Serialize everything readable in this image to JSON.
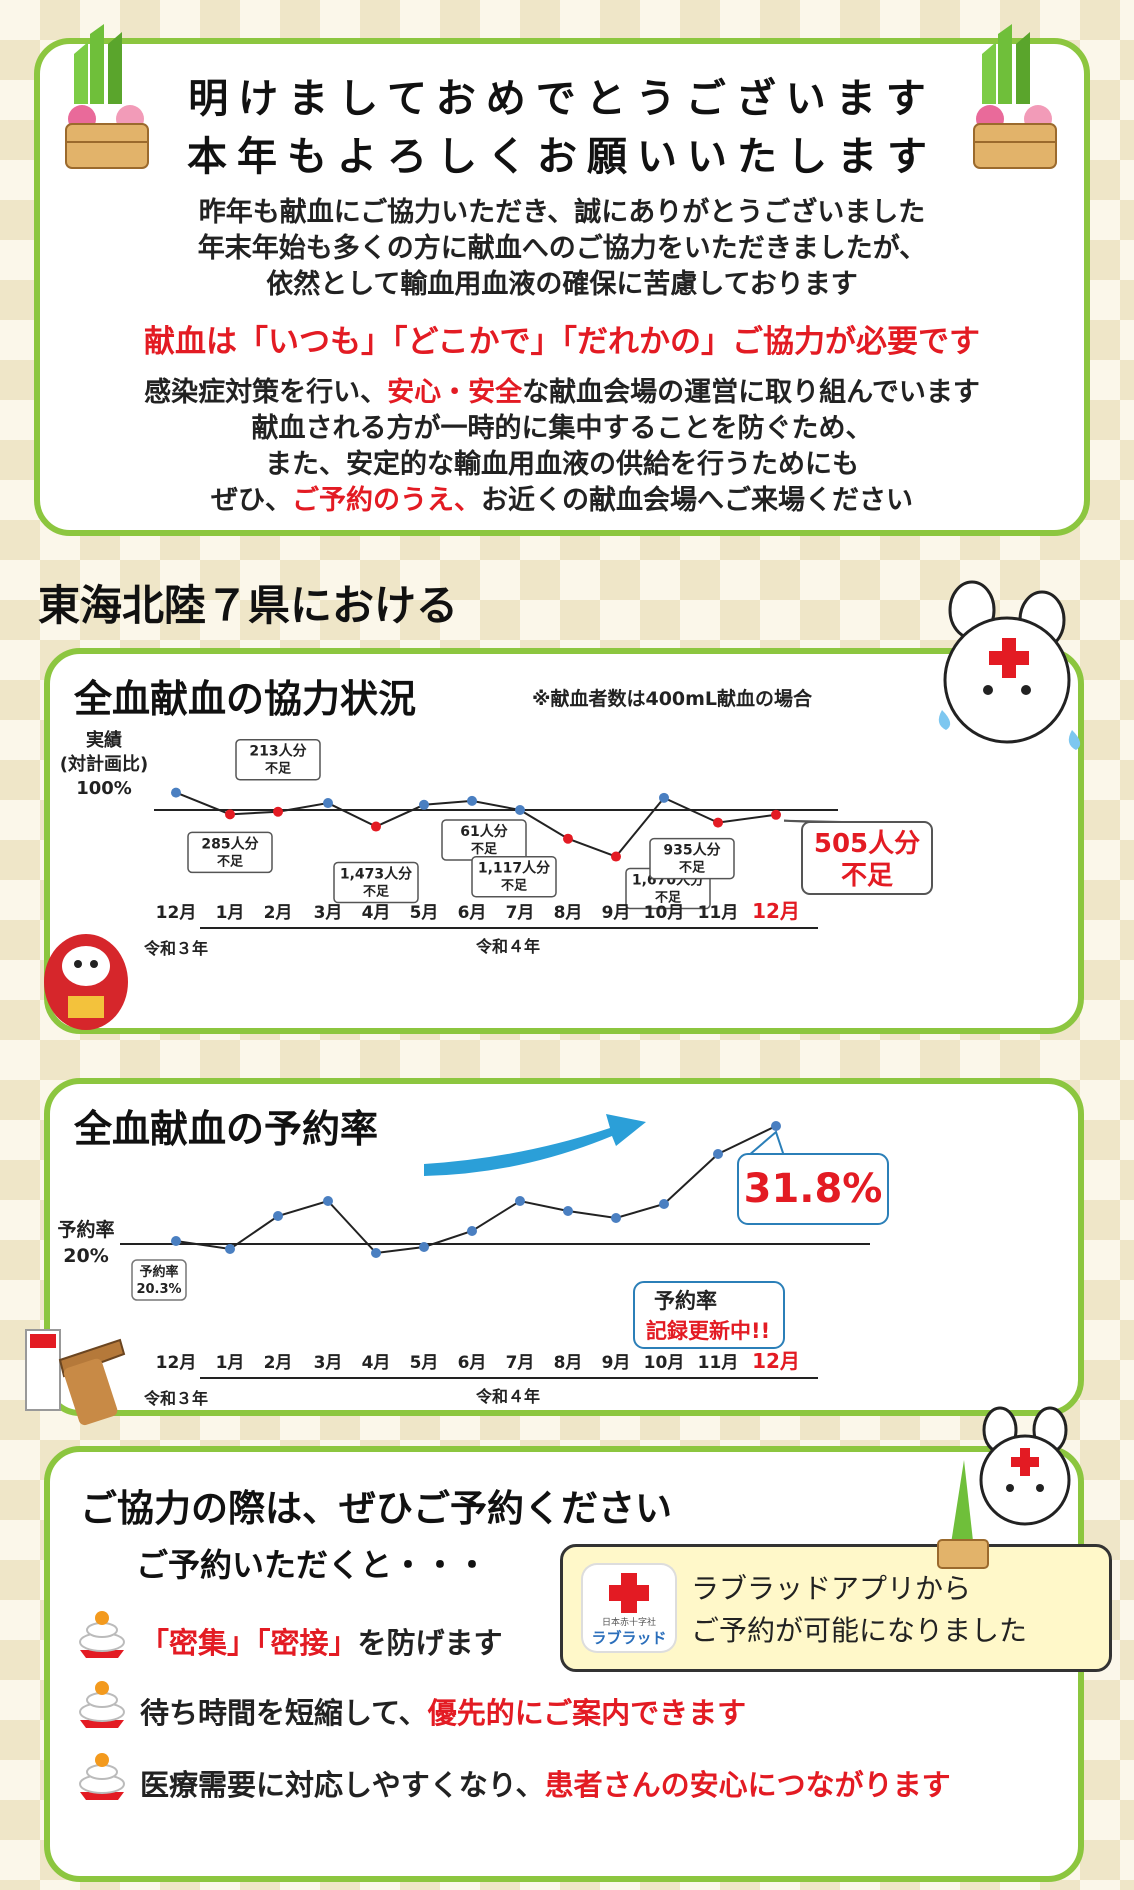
{
  "greeting": {
    "line1": "明けましておめでとうございます",
    "line2": "本年もよろしくお願いいたします",
    "body": [
      "昨年も献血にご協力いただき、誠にありがとうございました",
      "年末年始も多くの方に献血へのご協力をいただきましたが、",
      "依然として輸血用血液の確保に苦慮しております"
    ],
    "slogan": "献血は「いつも」「どこかで」「だれかの」ご協力が必要です",
    "measures_1a": "感染症対策を行い、",
    "measures_1b": "安心・安全",
    "measures_1c": "な献血会場の運営に取り組んでいます",
    "measures_2": "献血される方が一時的に集中することを防ぐため、",
    "measures_3": "また、安定的な輸血用血液の供給を行うためにも",
    "measures_4a": "ぜひ、",
    "measures_4b": "ご予約のうえ、",
    "measures_4c": "お近くの献血会場へご来場ください"
  },
  "region_title": "東海北陸７県における",
  "chart1_title": "全血献血の協力状況",
  "chart1_note": "※献血者数は400mL献血の場合",
  "chart2_title": "全血献血の予約率",
  "chart2_badge_line1": "予約率",
  "chart2_badge_line2": "記録更新中!!",
  "colors": {
    "accent_green": "#8cc63f",
    "red": "#e31b23",
    "blue_point": "#4a7fc1",
    "red_point": "#e31b23"
  },
  "chart_data": [
    {
      "type": "line",
      "title": "全血献血の協力状況",
      "ylabel_lines": [
        "実績",
        "(対計画比)",
        "100%"
      ],
      "reference_line": 100,
      "categories": [
        "12月",
        "1月",
        "2月",
        "3月",
        "4月",
        "5月",
        "6月",
        "7月",
        "8月",
        "9月",
        "10月",
        "11月",
        "12月"
      ],
      "era_labels": [
        "令和３年",
        "令和４年"
      ],
      "values": [
        104.0,
        99.0,
        99.6,
        101.6,
        96.2,
        101.2,
        102.1,
        100.0,
        93.4,
        89.3,
        102.8,
        97.1,
        98.9
      ],
      "shortfall_labels": [
        {
          "month_index": 1,
          "text": [
            "285人分",
            "不足"
          ]
        },
        {
          "month_index": 2,
          "text": [
            "213人分",
            "不足"
          ]
        },
        {
          "month_index": 4,
          "text": [
            "1,473人分",
            "不足"
          ]
        },
        {
          "month_index": 7,
          "text": [
            "61人分",
            "不足"
          ]
        },
        {
          "month_index": 8,
          "text": [
            "1,117人分",
            "不足"
          ]
        },
        {
          "month_index": 9,
          "text": [
            "1,670人分",
            "不足"
          ]
        },
        {
          "month_index": 11,
          "text": [
            "935人分",
            "不足"
          ]
        },
        {
          "month_index": 12,
          "text": [
            "505人分",
            "不足"
          ]
        }
      ]
    },
    {
      "type": "line",
      "title": "全血献血の予約率",
      "ylabel_lines": [
        "予約率",
        "20%"
      ],
      "reference_line": 20.0,
      "categories": [
        "12月",
        "1月",
        "2月",
        "3月",
        "4月",
        "5月",
        "6月",
        "7月",
        "8月",
        "9月",
        "10月",
        "11月",
        "12月"
      ],
      "era_labels": [
        "令和３年",
        "令和４年"
      ],
      "values": [
        20.3,
        19.5,
        22.8,
        24.3,
        19.1,
        19.7,
        21.3,
        24.3,
        23.3,
        22.6,
        24.0,
        29.0,
        31.8
      ],
      "first_label": [
        "予約率",
        "20.3%"
      ],
      "last_label": "31.8%"
    }
  ],
  "bottom": {
    "title": "ご協力の際は、ぜひご予約ください",
    "subtitle": "ご予約いただくと・・・",
    "b1a": "「密集」「密接」",
    "b1b": "を防げます",
    "b2a": "待ち時間を短縮して、",
    "b2b": "優先的にご案内できます",
    "b3a": "医療需要に対応しやすくなり、",
    "b3b": "患者さんの安心につながります",
    "app_line1": "ラブラッドアプリから",
    "app_line2": "ご予約が可能になりました",
    "app_icon_small": "日本赤十字社",
    "app_icon_name": "ラブラッド"
  }
}
